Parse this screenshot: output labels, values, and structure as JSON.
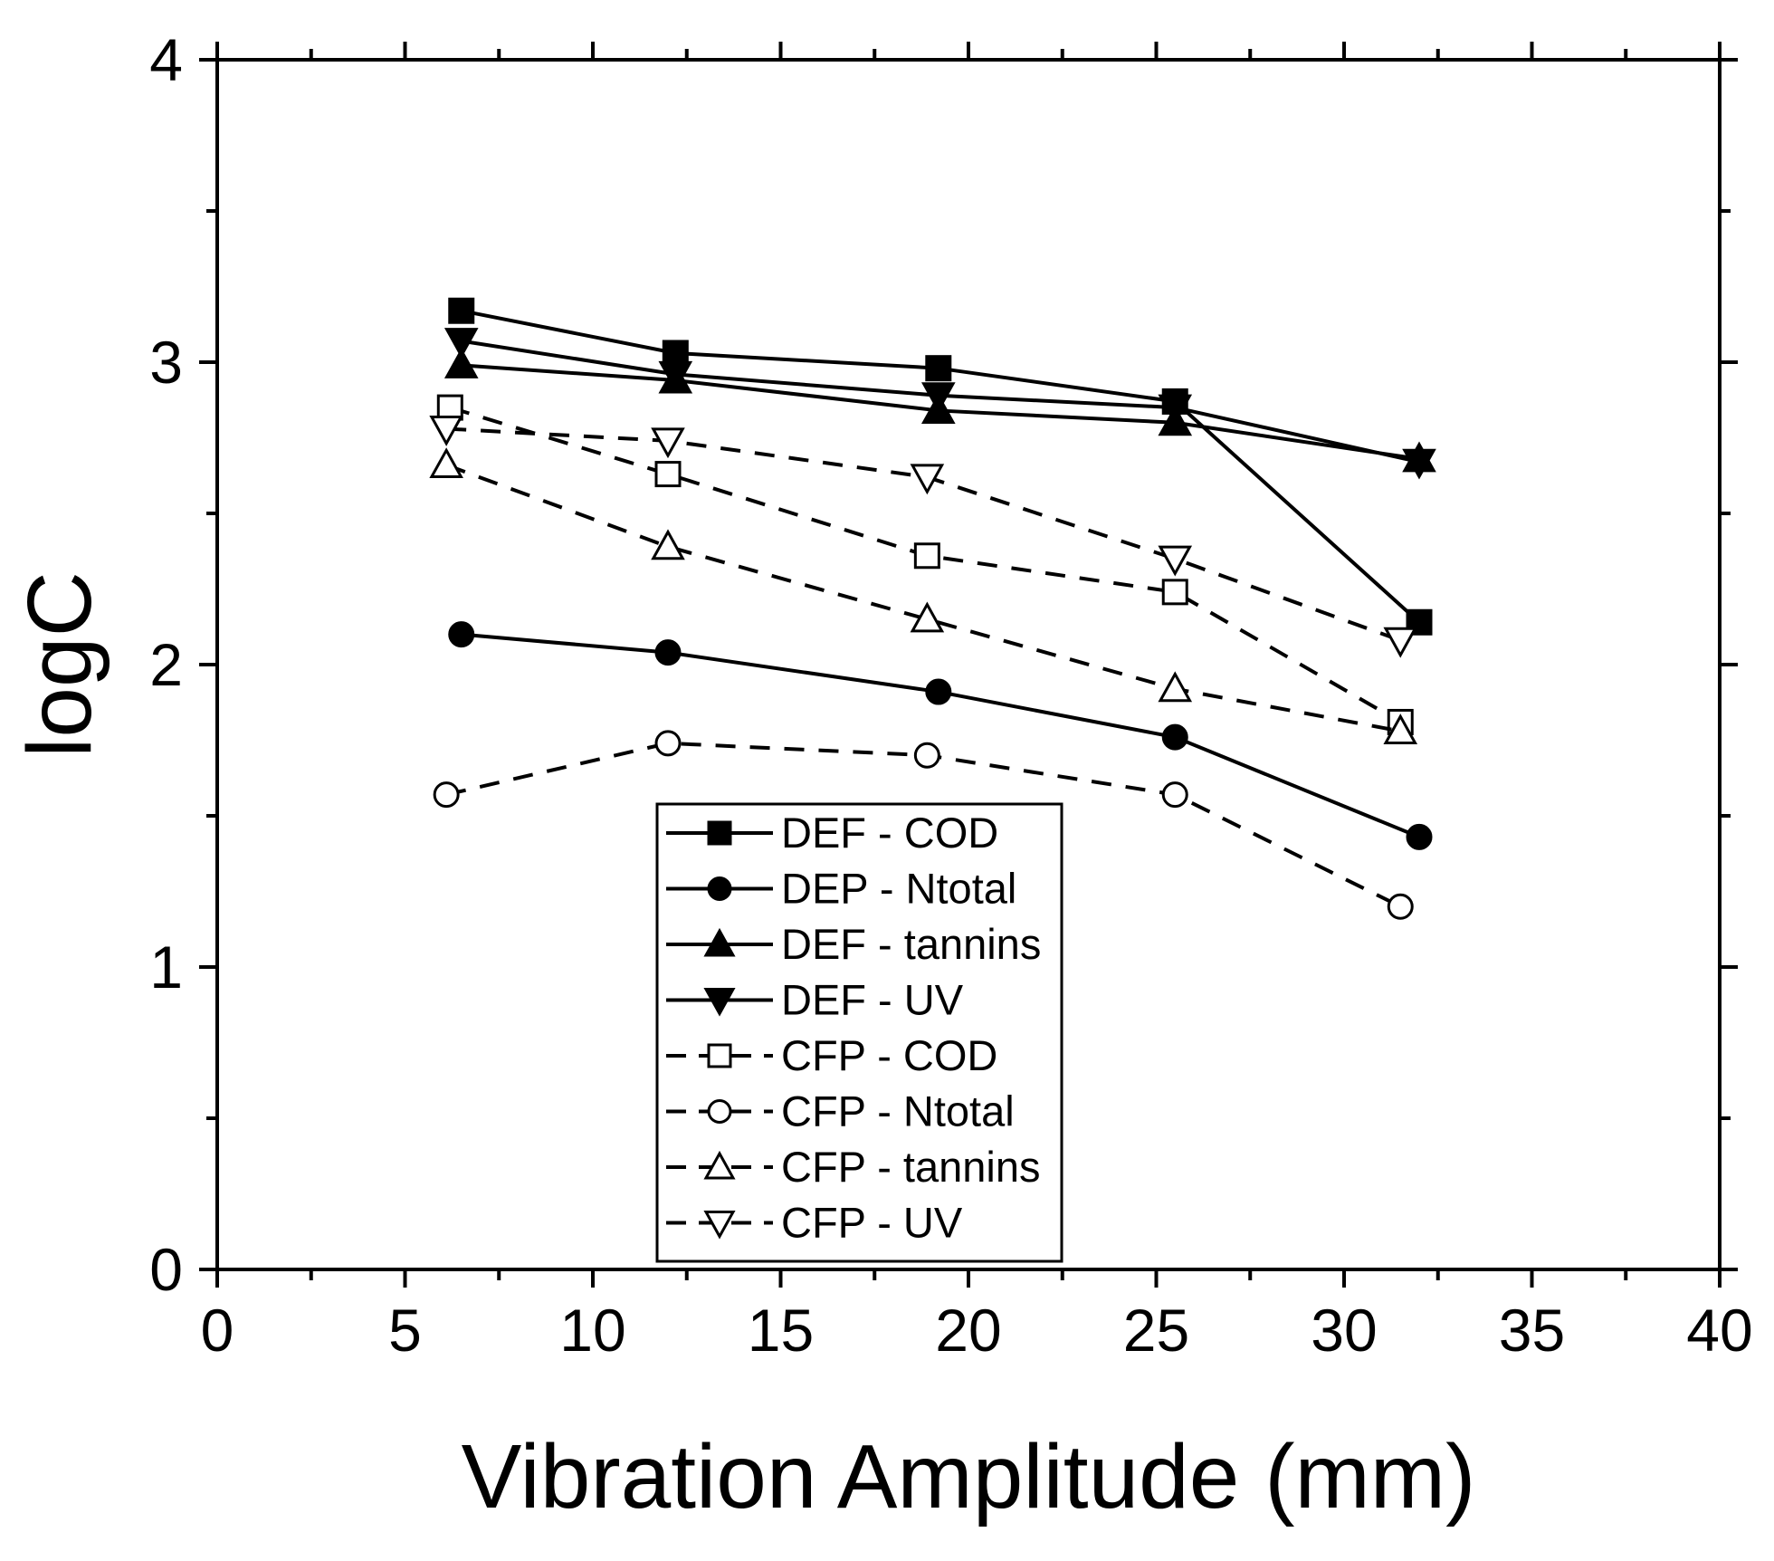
{
  "chart_data": {
    "type": "line",
    "xlabel": "Vibration Amplitude (mm)",
    "ylabel": "logC",
    "xlim": [
      0,
      40
    ],
    "ylim": [
      0,
      4
    ],
    "xticks": [
      "0",
      "5",
      "10",
      "15",
      "20",
      "25",
      "30",
      "35",
      "40"
    ],
    "yticks": [
      "0",
      "1",
      "2",
      "3",
      "4"
    ],
    "grid": false,
    "legend_position": "bottom-center",
    "series": [
      {
        "name": "DEF - COD",
        "marker": "square",
        "filled": true,
        "dashed": false,
        "x": [
          6.5,
          12.2,
          19.2,
          25.5,
          32.0
        ],
        "y": [
          3.17,
          3.03,
          2.98,
          2.87,
          2.14
        ]
      },
      {
        "name": "DEP - Ntotal",
        "marker": "circle",
        "filled": true,
        "dashed": false,
        "x": [
          6.5,
          12.0,
          19.2,
          25.5,
          32.0
        ],
        "y": [
          2.1,
          2.04,
          1.91,
          1.76,
          1.43
        ]
      },
      {
        "name": "DEF - tannins",
        "marker": "triangle-up",
        "filled": true,
        "dashed": false,
        "x": [
          6.5,
          12.2,
          19.2,
          25.5,
          32.0
        ],
        "y": [
          2.99,
          2.94,
          2.84,
          2.8,
          2.68
        ]
      },
      {
        "name": "DEF - UV",
        "marker": "triangle-down",
        "filled": true,
        "dashed": false,
        "x": [
          6.5,
          12.2,
          19.2,
          25.5,
          32.0
        ],
        "y": [
          3.07,
          2.96,
          2.89,
          2.85,
          2.67
        ]
      },
      {
        "name": "CFP - COD",
        "marker": "square",
        "filled": false,
        "dashed": true,
        "x": [
          6.2,
          12.0,
          18.9,
          25.5,
          31.5
        ],
        "y": [
          2.85,
          2.63,
          2.36,
          2.24,
          1.81
        ]
      },
      {
        "name": "CFP - Ntotal",
        "marker": "circle",
        "filled": false,
        "dashed": true,
        "x": [
          6.1,
          12.0,
          18.9,
          25.5,
          31.5
        ],
        "y": [
          1.57,
          1.74,
          1.7,
          1.57,
          1.2
        ]
      },
      {
        "name": "CFP - tannins",
        "marker": "triangle-up",
        "filled": false,
        "dashed": true,
        "x": [
          6.1,
          12.0,
          18.9,
          25.5,
          31.5
        ],
        "y": [
          2.66,
          2.39,
          2.15,
          1.92,
          1.78
        ]
      },
      {
        "name": "CFP - UV",
        "marker": "triangle-down",
        "filled": false,
        "dashed": true,
        "x": [
          6.1,
          12.0,
          18.9,
          25.5,
          31.5
        ],
        "y": [
          2.78,
          2.74,
          2.62,
          2.35,
          2.08
        ]
      }
    ]
  }
}
